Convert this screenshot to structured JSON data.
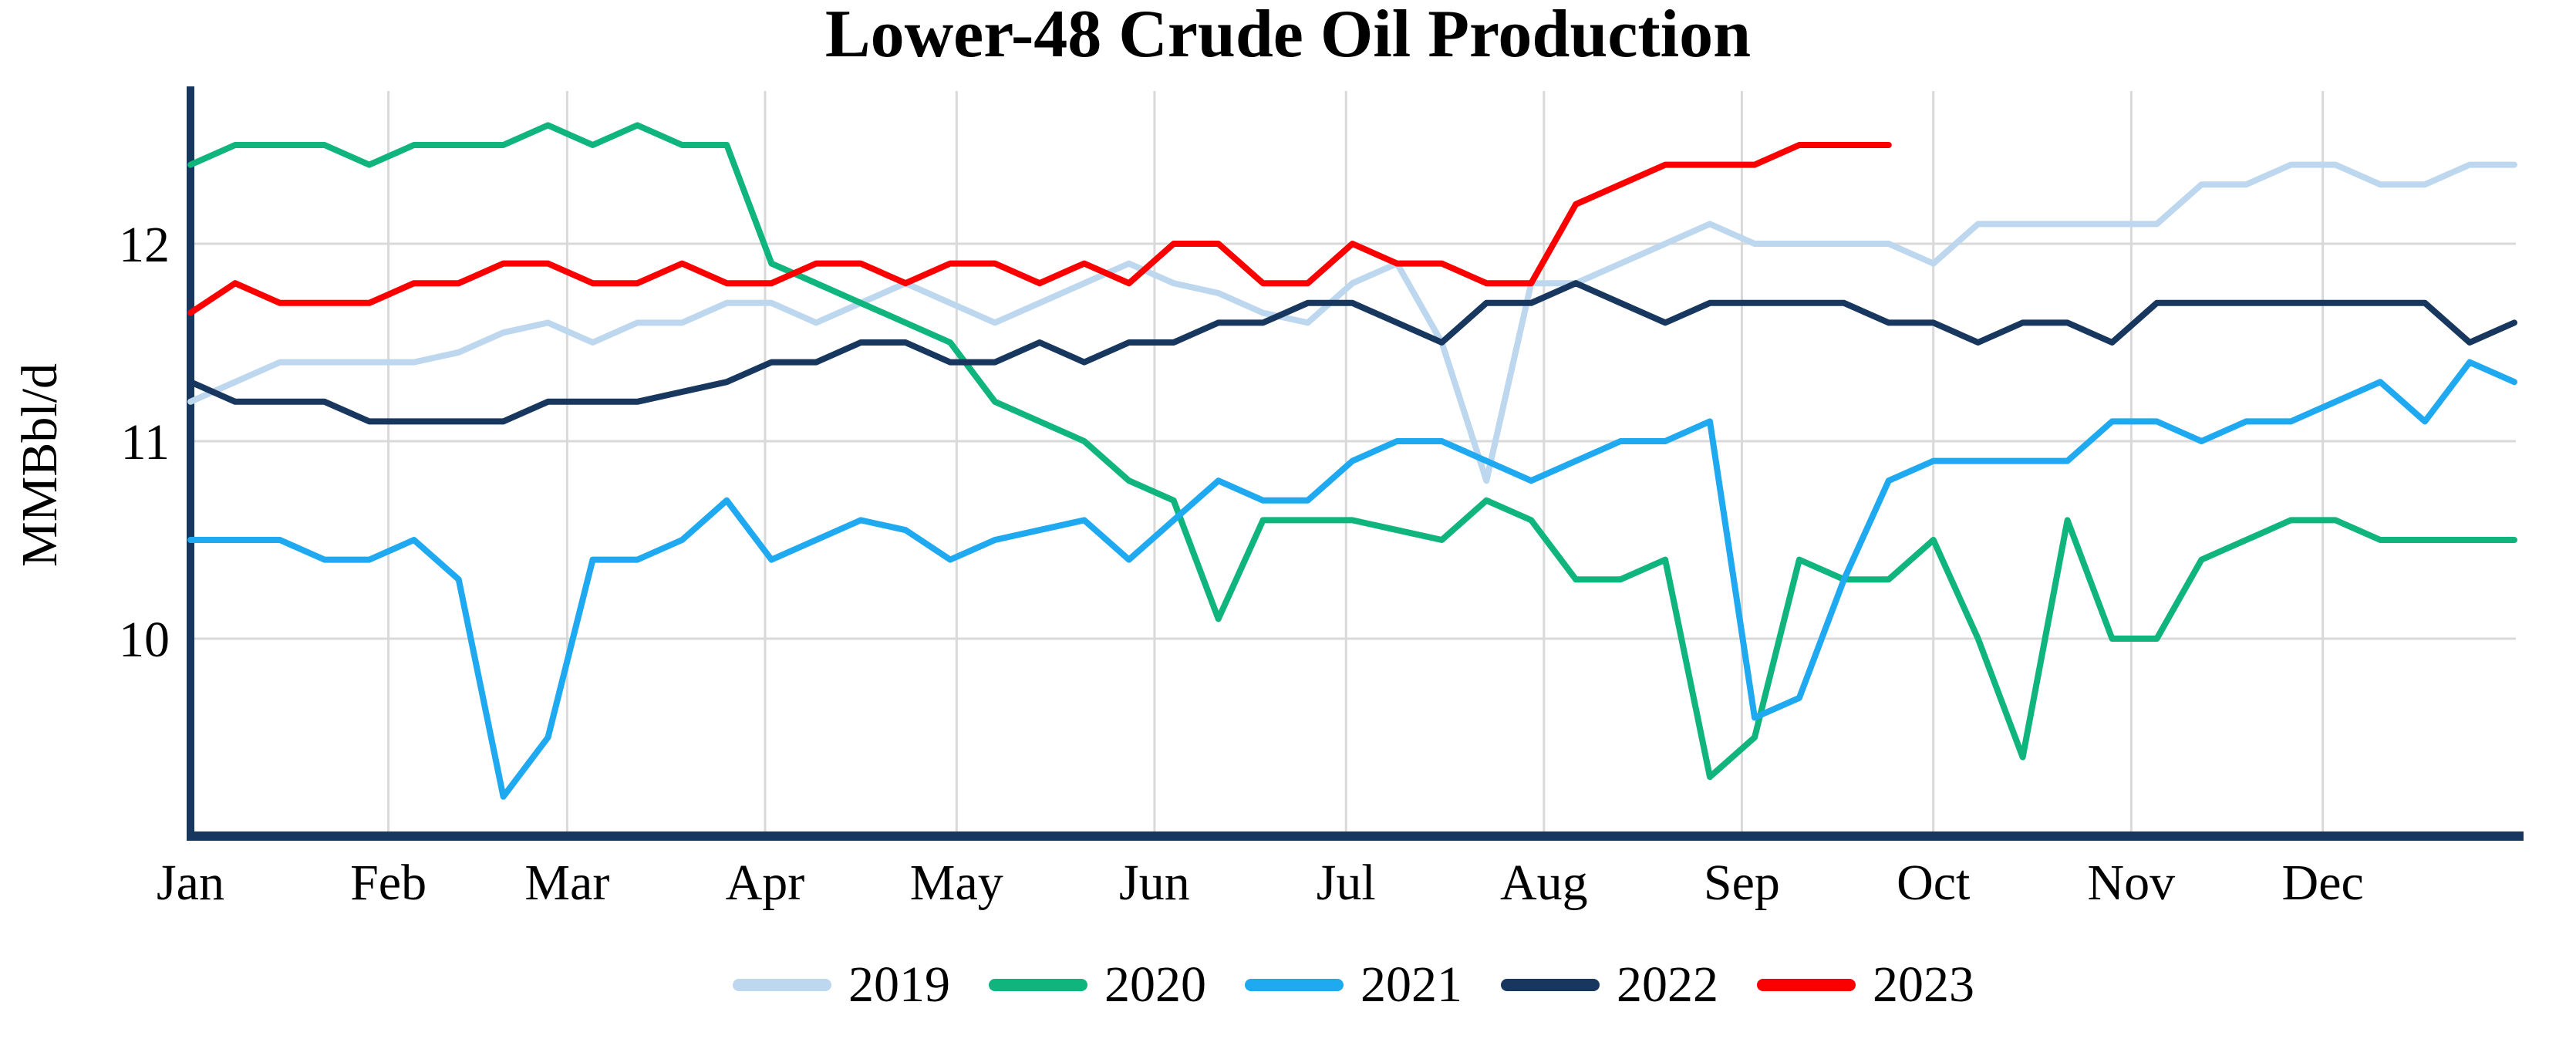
{
  "chart_data": {
    "type": "line",
    "title": "Lower-48 Crude Oil Production",
    "ylabel": "MMBbl/d",
    "xlabel": "",
    "categories": [
      "Jan",
      "Feb",
      "Mar",
      "Apr",
      "May",
      "Jun",
      "Jul",
      "Aug",
      "Sep",
      "Oct",
      "Nov",
      "Dec"
    ],
    "x_resolution": "weekly",
    "yticks": [
      10,
      11,
      12
    ],
    "ylim": [
      8.95,
      12.78
    ],
    "grid": {
      "horizontal": true,
      "vertical": true,
      "color": "#D9D9D9"
    },
    "axis_color": "#17375E",
    "background": "#FFFFFF",
    "legend_position": "bottom",
    "series": [
      {
        "name": "2019",
        "color": "#BDD7EE",
        "values": [
          11.2,
          11.3,
          11.4,
          11.4,
          11.4,
          11.4,
          11.45,
          11.55,
          11.6,
          11.5,
          11.6,
          11.6,
          11.7,
          11.7,
          11.6,
          11.7,
          11.8,
          11.7,
          11.6,
          11.7,
          11.8,
          11.9,
          11.8,
          11.75,
          11.65,
          11.6,
          11.8,
          11.9,
          11.5,
          10.8,
          11.8,
          11.8,
          11.9,
          12.0,
          12.1,
          12.0,
          12.0,
          12.0,
          12.0,
          11.9,
          12.1,
          12.1,
          12.1,
          12.1,
          12.1,
          12.3,
          12.3,
          12.4,
          12.4,
          12.3,
          12.3,
          12.4,
          12.4
        ]
      },
      {
        "name": "2020",
        "color": "#0FB57D",
        "values": [
          12.4,
          12.5,
          12.5,
          12.5,
          12.4,
          12.5,
          12.5,
          12.5,
          12.6,
          12.5,
          12.6,
          12.5,
          12.5,
          11.9,
          11.8,
          11.7,
          11.6,
          11.5,
          11.2,
          11.1,
          11.0,
          10.8,
          10.7,
          10.1,
          10.6,
          10.6,
          10.6,
          10.55,
          10.5,
          10.7,
          10.6,
          10.3,
          10.3,
          10.4,
          9.3,
          9.5,
          10.4,
          10.3,
          10.3,
          10.5,
          10.0,
          9.4,
          10.6,
          10.0,
          10.0,
          10.4,
          10.5,
          10.6,
          10.6,
          10.5,
          10.5,
          10.5,
          10.5
        ]
      },
      {
        "name": "2021",
        "color": "#1FA9F0",
        "values": [
          10.5,
          10.5,
          10.5,
          10.4,
          10.4,
          10.5,
          10.3,
          9.2,
          9.5,
          10.4,
          10.4,
          10.5,
          10.7,
          10.4,
          10.5,
          10.6,
          10.55,
          10.4,
          10.5,
          10.55,
          10.6,
          10.4,
          10.6,
          10.8,
          10.7,
          10.7,
          10.9,
          11.0,
          11.0,
          10.9,
          10.8,
          10.9,
          11.0,
          11.0,
          11.1,
          9.6,
          9.7,
          10.3,
          10.8,
          10.9,
          10.9,
          10.9,
          10.9,
          11.1,
          11.1,
          11.0,
          11.1,
          11.1,
          11.2,
          11.3,
          11.1,
          11.4,
          11.3
        ]
      },
      {
        "name": "2022",
        "color": "#17375E",
        "values": [
          11.3,
          11.2,
          11.2,
          11.2,
          11.1,
          11.1,
          11.1,
          11.1,
          11.2,
          11.2,
          11.2,
          11.25,
          11.3,
          11.4,
          11.4,
          11.5,
          11.5,
          11.4,
          11.4,
          11.5,
          11.4,
          11.5,
          11.5,
          11.6,
          11.6,
          11.7,
          11.7,
          11.6,
          11.5,
          11.7,
          11.7,
          11.8,
          11.7,
          11.6,
          11.7,
          11.7,
          11.7,
          11.7,
          11.6,
          11.6,
          11.5,
          11.6,
          11.6,
          11.5,
          11.7,
          11.7,
          11.7,
          11.7,
          11.7,
          11.7,
          11.7,
          11.5,
          11.6
        ]
      },
      {
        "name": "2023",
        "color": "#FB0000",
        "values": [
          11.65,
          11.8,
          11.7,
          11.7,
          11.7,
          11.8,
          11.8,
          11.9,
          11.9,
          11.8,
          11.8,
          11.9,
          11.8,
          11.8,
          11.9,
          11.9,
          11.8,
          11.9,
          11.9,
          11.8,
          11.9,
          11.8,
          12.0,
          12.0,
          11.8,
          11.8,
          12.0,
          11.9,
          11.9,
          11.8,
          11.8,
          12.2,
          12.3,
          12.4,
          12.4,
          12.4,
          12.5,
          12.5,
          12.5
        ]
      }
    ]
  }
}
